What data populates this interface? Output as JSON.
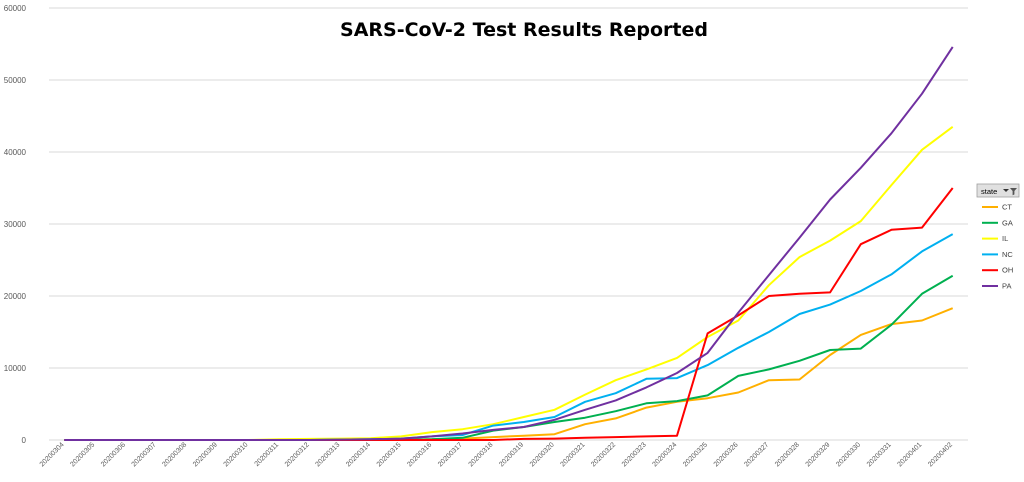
{
  "chart_data": {
    "type": "line",
    "title": "SARS-CoV-2 Test Results Reported",
    "legend_title": "state",
    "legend_position": "right",
    "grid": true,
    "ylim": [
      0,
      60000
    ],
    "yticks": [
      0,
      10000,
      20000,
      30000,
      40000,
      50000,
      60000
    ],
    "categories": [
      "20200304",
      "20200305",
      "20200306",
      "20200307",
      "20200308",
      "20200309",
      "20200310",
      "20200311",
      "20200312",
      "20200313",
      "20200314",
      "20200315",
      "20200316",
      "20200317",
      "20200318",
      "20200319",
      "20200320",
      "20200321",
      "20200322",
      "20200323",
      "20200324",
      "20200325",
      "20200326",
      "20200327",
      "20200328",
      "20200329",
      "20200330",
      "20200331",
      "20200401",
      "20200402"
    ],
    "series": [
      {
        "name": "CT",
        "color": "#ffb000",
        "values": [
          0,
          0,
          0,
          0,
          0,
          0,
          0,
          0,
          0,
          0,
          0,
          50,
          100,
          200,
          400,
          600,
          800,
          2200,
          3000,
          4500,
          5300,
          5800,
          6600,
          8300,
          8400,
          11800,
          14600,
          16100,
          16600,
          18300
        ]
      },
      {
        "name": "GA",
        "color": "#00b050",
        "values": [
          0,
          0,
          0,
          0,
          0,
          0,
          0,
          0,
          0,
          0,
          0,
          0,
          100,
          300,
          1300,
          1800,
          2500,
          3100,
          4000,
          5100,
          5400,
          6200,
          8900,
          9800,
          11000,
          12500,
          12700,
          16000,
          20300,
          22800
        ]
      },
      {
        "name": "IL",
        "color": "#ffff00",
        "values": [
          0,
          0,
          0,
          0,
          0,
          0,
          0,
          100,
          150,
          200,
          250,
          500,
          1100,
          1500,
          2200,
          3200,
          4200,
          6300,
          8300,
          9800,
          11400,
          14300,
          16600,
          21500,
          25400,
          27700,
          30400,
          35400,
          40300,
          43500
        ]
      },
      {
        "name": "NC",
        "color": "#00b0f0",
        "values": [
          0,
          0,
          0,
          0,
          0,
          0,
          0,
          0,
          0,
          50,
          100,
          200,
          500,
          700,
          2000,
          2500,
          3200,
          5300,
          6500,
          8500,
          8600,
          10400,
          12800,
          15000,
          17500,
          18800,
          20700,
          23000,
          26200,
          28600
        ]
      },
      {
        "name": "OH",
        "color": "#ff0000",
        "values": [
          0,
          0,
          0,
          0,
          0,
          0,
          0,
          0,
          0,
          0,
          0,
          0,
          0,
          0,
          0,
          150,
          200,
          300,
          400,
          500,
          600,
          14800,
          17300,
          20000,
          20300,
          20500,
          27200,
          29200,
          29500,
          35000
        ]
      },
      {
        "name": "PA",
        "color": "#7030a0",
        "values": [
          0,
          0,
          0,
          0,
          0,
          0,
          0,
          0,
          0,
          50,
          100,
          200,
          500,
          900,
          1400,
          1800,
          2800,
          4200,
          5500,
          7300,
          9300,
          12100,
          17700,
          22900,
          28100,
          33400,
          37800,
          42600,
          48100,
          54600
        ]
      }
    ]
  }
}
